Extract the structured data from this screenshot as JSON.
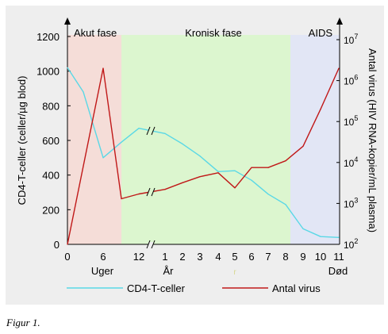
{
  "caption": "Figur 1.",
  "phases": [
    {
      "label": "Akut fase",
      "color": "#f5ddd8"
    },
    {
      "label": "Kronisk fase",
      "color": "#dcf6cf"
    },
    {
      "label": "AIDS",
      "color": "#e2e6f5"
    }
  ],
  "left_axis": {
    "label": "CD4-T-celler (celler/µg blod)",
    "ticks": [
      "0",
      "200",
      "400",
      "600",
      "800",
      "1000",
      "1200"
    ]
  },
  "right_axis": {
    "label": "Antal virus (HIV RNA-kopier/mL plasma)",
    "ticks": [
      {
        "base": "10",
        "exp": "2"
      },
      {
        "base": "10",
        "exp": "3"
      },
      {
        "base": "10",
        "exp": "4"
      },
      {
        "base": "10",
        "exp": "5"
      },
      {
        "base": "10",
        "exp": "6"
      },
      {
        "base": "10",
        "exp": "7"
      }
    ]
  },
  "x_axis": {
    "weeks_ticks": [
      "0",
      "6",
      "12"
    ],
    "weeks_label": "Uger",
    "years_ticks": [
      "1",
      "2",
      "3",
      "4",
      "5",
      "6",
      "7",
      "8",
      "9",
      "10",
      "11"
    ],
    "years_label": "År",
    "years_sublabel": "r",
    "end_label": "Død"
  },
  "legend": [
    {
      "name": "CD4-T-celler",
      "color": "#5ad8e6"
    },
    {
      "name": "Antal virus",
      "color": "#c01818"
    }
  ],
  "chart_data": {
    "type": "line",
    "series": [
      {
        "name": "CD4-T-celler",
        "color": "#5ad8e6",
        "axis": "left",
        "points": [
          [
            "0 uger",
            1020
          ],
          [
            "3 uger",
            880
          ],
          [
            "6 uger",
            500
          ],
          [
            "9 uger",
            590
          ],
          [
            "12 uger",
            670
          ],
          [
            "1 år",
            640
          ],
          [
            "2 år",
            580
          ],
          [
            "3 år",
            510
          ],
          [
            "4 år",
            420
          ],
          [
            "5 år",
            425
          ],
          [
            "6 år",
            370
          ],
          [
            "7 år",
            290
          ],
          [
            "8 år",
            230
          ],
          [
            "9 år",
            90
          ],
          [
            "10 år",
            45
          ],
          [
            "11 år",
            40
          ]
        ]
      },
      {
        "name": "Antal virus",
        "color": "#c01818",
        "axis": "right",
        "points": [
          [
            "0 uger",
            100
          ],
          [
            "6 uger",
            2000000
          ],
          [
            "9 uger",
            1300
          ],
          [
            "12 uger",
            1700
          ],
          [
            "1 år",
            2200
          ],
          [
            "2 år",
            3200
          ],
          [
            "3 år",
            4500
          ],
          [
            "4 år",
            5600
          ],
          [
            "5 år",
            2400
          ],
          [
            "6 år",
            7500
          ],
          [
            "7 år",
            7500
          ],
          [
            "8 år",
            11000
          ],
          [
            "9 år",
            25000
          ],
          [
            "10 år",
            200000
          ],
          [
            "11 år",
            2000000
          ]
        ]
      }
    ],
    "ylim_left": [
      0,
      1200
    ],
    "ylim_right": [
      100,
      10000000
    ],
    "right_scale": "log"
  }
}
